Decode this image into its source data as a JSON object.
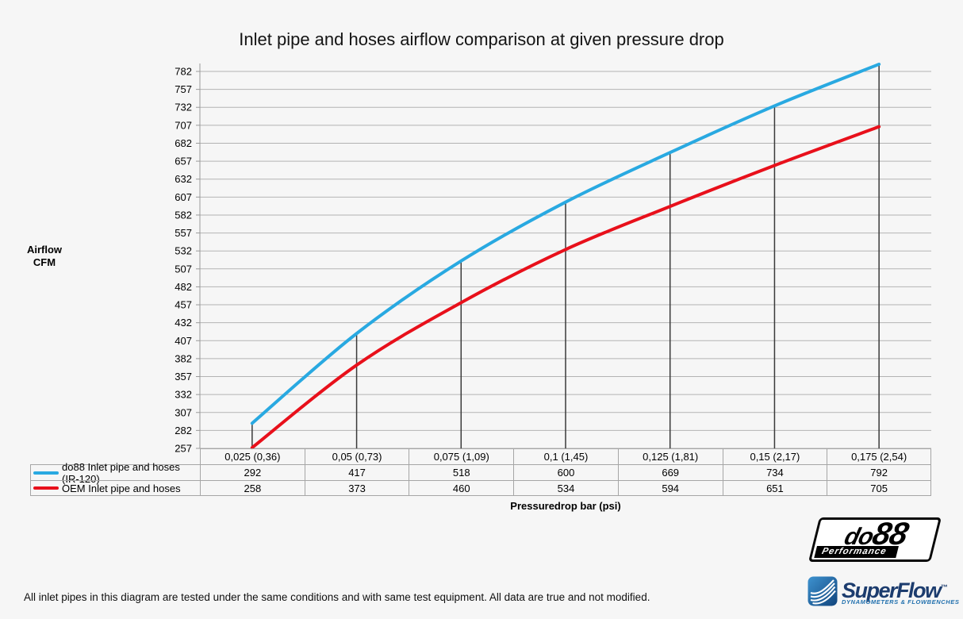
{
  "page": {
    "background": "#F6F6F6"
  },
  "chart_data": {
    "type": "line",
    "title": "Inlet pipe and hoses airflow comparison at given pressure drop",
    "xlabel": "Pressuredrop bar (psi)",
    "ylabel": "Airflow CFM",
    "ylabel_lines": [
      "Airflow",
      "CFM"
    ],
    "categories": [
      "0,025 (0,36)",
      "0,05 (0,73)",
      "0,075 (1,09)",
      "0,1 (1,45)",
      "0,125 (1,81)",
      "0,15 (2,17)",
      "0,175 (2,54)"
    ],
    "series": [
      {
        "name": "do88 Inlet pipe and hoses (IR-120)",
        "color": "#29A9E1",
        "values": [
          292,
          417,
          518,
          600,
          669,
          734,
          792
        ]
      },
      {
        "name": "OEM Inlet pipe and hoses",
        "color": "#E8101B",
        "values": [
          258,
          373,
          460,
          534,
          594,
          651,
          705
        ]
      }
    ],
    "ylim": [
      257,
      782
    ],
    "y_tick_step": 25,
    "y_tick_labels": [
      "257",
      "282",
      "307",
      "332",
      "357",
      "382",
      "407",
      "432",
      "457",
      "482",
      "507",
      "532",
      "557",
      "582",
      "607",
      "632",
      "657",
      "682",
      "707",
      "732",
      "757",
      "782"
    ],
    "grid": true,
    "legend_position": "table-left",
    "gridline_color": "#B3B3B3",
    "dropline_color": "#3A3A3A",
    "axis_color": "#9A9A9A",
    "table_border_color": "#A6A6A6"
  },
  "footnote": "All inlet pipes in this diagram are tested under the same conditions and with same test equipment. All data are true and not modified.",
  "logos": {
    "do88": {
      "part1": "do",
      "part2": "88",
      "subtext": "Performance"
    },
    "superflow": {
      "text": "SuperFlow",
      "tm": "™",
      "subtext": "DYNAMOMETERS & FLOWBENCHES"
    }
  }
}
